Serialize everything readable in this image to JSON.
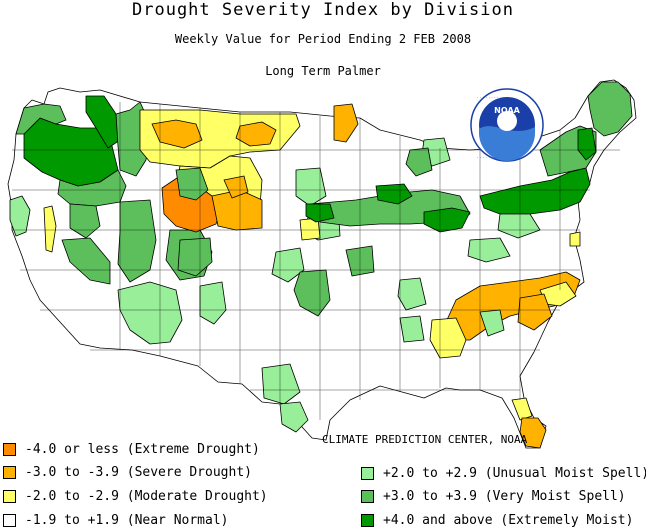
{
  "header": {
    "title": "Drought Severity Index by Division",
    "subtitle": "Weekly Value for Period Ending  2 FEB 2008",
    "index_name": "Long Term Palmer"
  },
  "logo": {
    "text": "NOAA"
  },
  "credit": "CLIMATE PREDICTION CENTER, NOAA",
  "colors": {
    "extreme_drought": "#ff8c00",
    "severe_drought": "#ffb300",
    "moderate_drought": "#ffff66",
    "near_normal": "#ffffff",
    "unusual_moist": "#99ee99",
    "very_moist": "#5cbf5c",
    "extremely_moist": "#009900"
  },
  "legend": {
    "left": [
      {
        "label": "-4.0 or less (Extreme Drought)",
        "color": "#ff8c00"
      },
      {
        "label": "-3.0 to -3.9 (Severe Drought)",
        "color": "#ffb300"
      },
      {
        "label": "-2.0 to -2.9 (Moderate Drought)",
        "color": "#ffff66"
      },
      {
        "label": "-1.9 to +1.9 (Near Normal)",
        "color": "#ffffff"
      }
    ],
    "right": [
      {
        "label": "+2.0 to +2.9 (Unusual Moist Spell)",
        "color": "#99ee99"
      },
      {
        "label": "+3.0 to +3.9 (Very Moist Spell)",
        "color": "#5cbf5c"
      },
      {
        "label": "+4.0 and above (Extremely Moist)",
        "color": "#009900"
      }
    ]
  }
}
